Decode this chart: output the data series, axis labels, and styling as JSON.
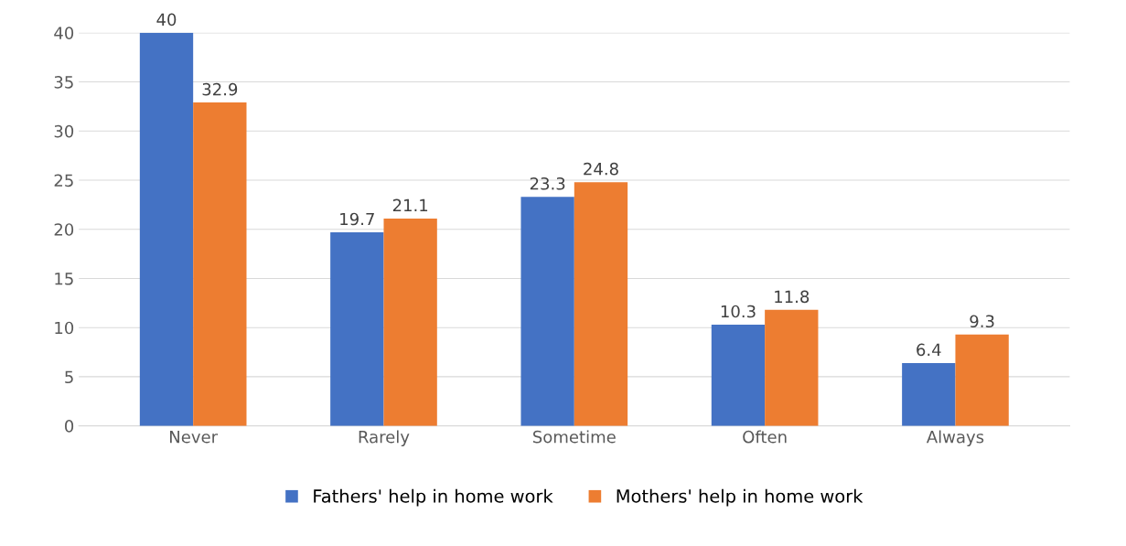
{
  "chart_data": {
    "type": "bar",
    "categories": [
      "Never",
      "Rarely",
      "Sometime",
      "Often",
      "Always"
    ],
    "series": [
      {
        "name": "Fathers' help in home work",
        "color": "#4472c4",
        "values": [
          40,
          19.7,
          23.3,
          10.3,
          6.4
        ]
      },
      {
        "name": "Mothers' help in home work",
        "color": "#ed7d31",
        "values": [
          32.9,
          21.1,
          24.8,
          11.8,
          9.3
        ]
      }
    ],
    "ylim": [
      0,
      40
    ],
    "yticks": [
      0,
      5,
      10,
      15,
      20,
      25,
      30,
      35,
      40
    ],
    "grid": "y",
    "legend": "bottom",
    "data_labels": true
  }
}
